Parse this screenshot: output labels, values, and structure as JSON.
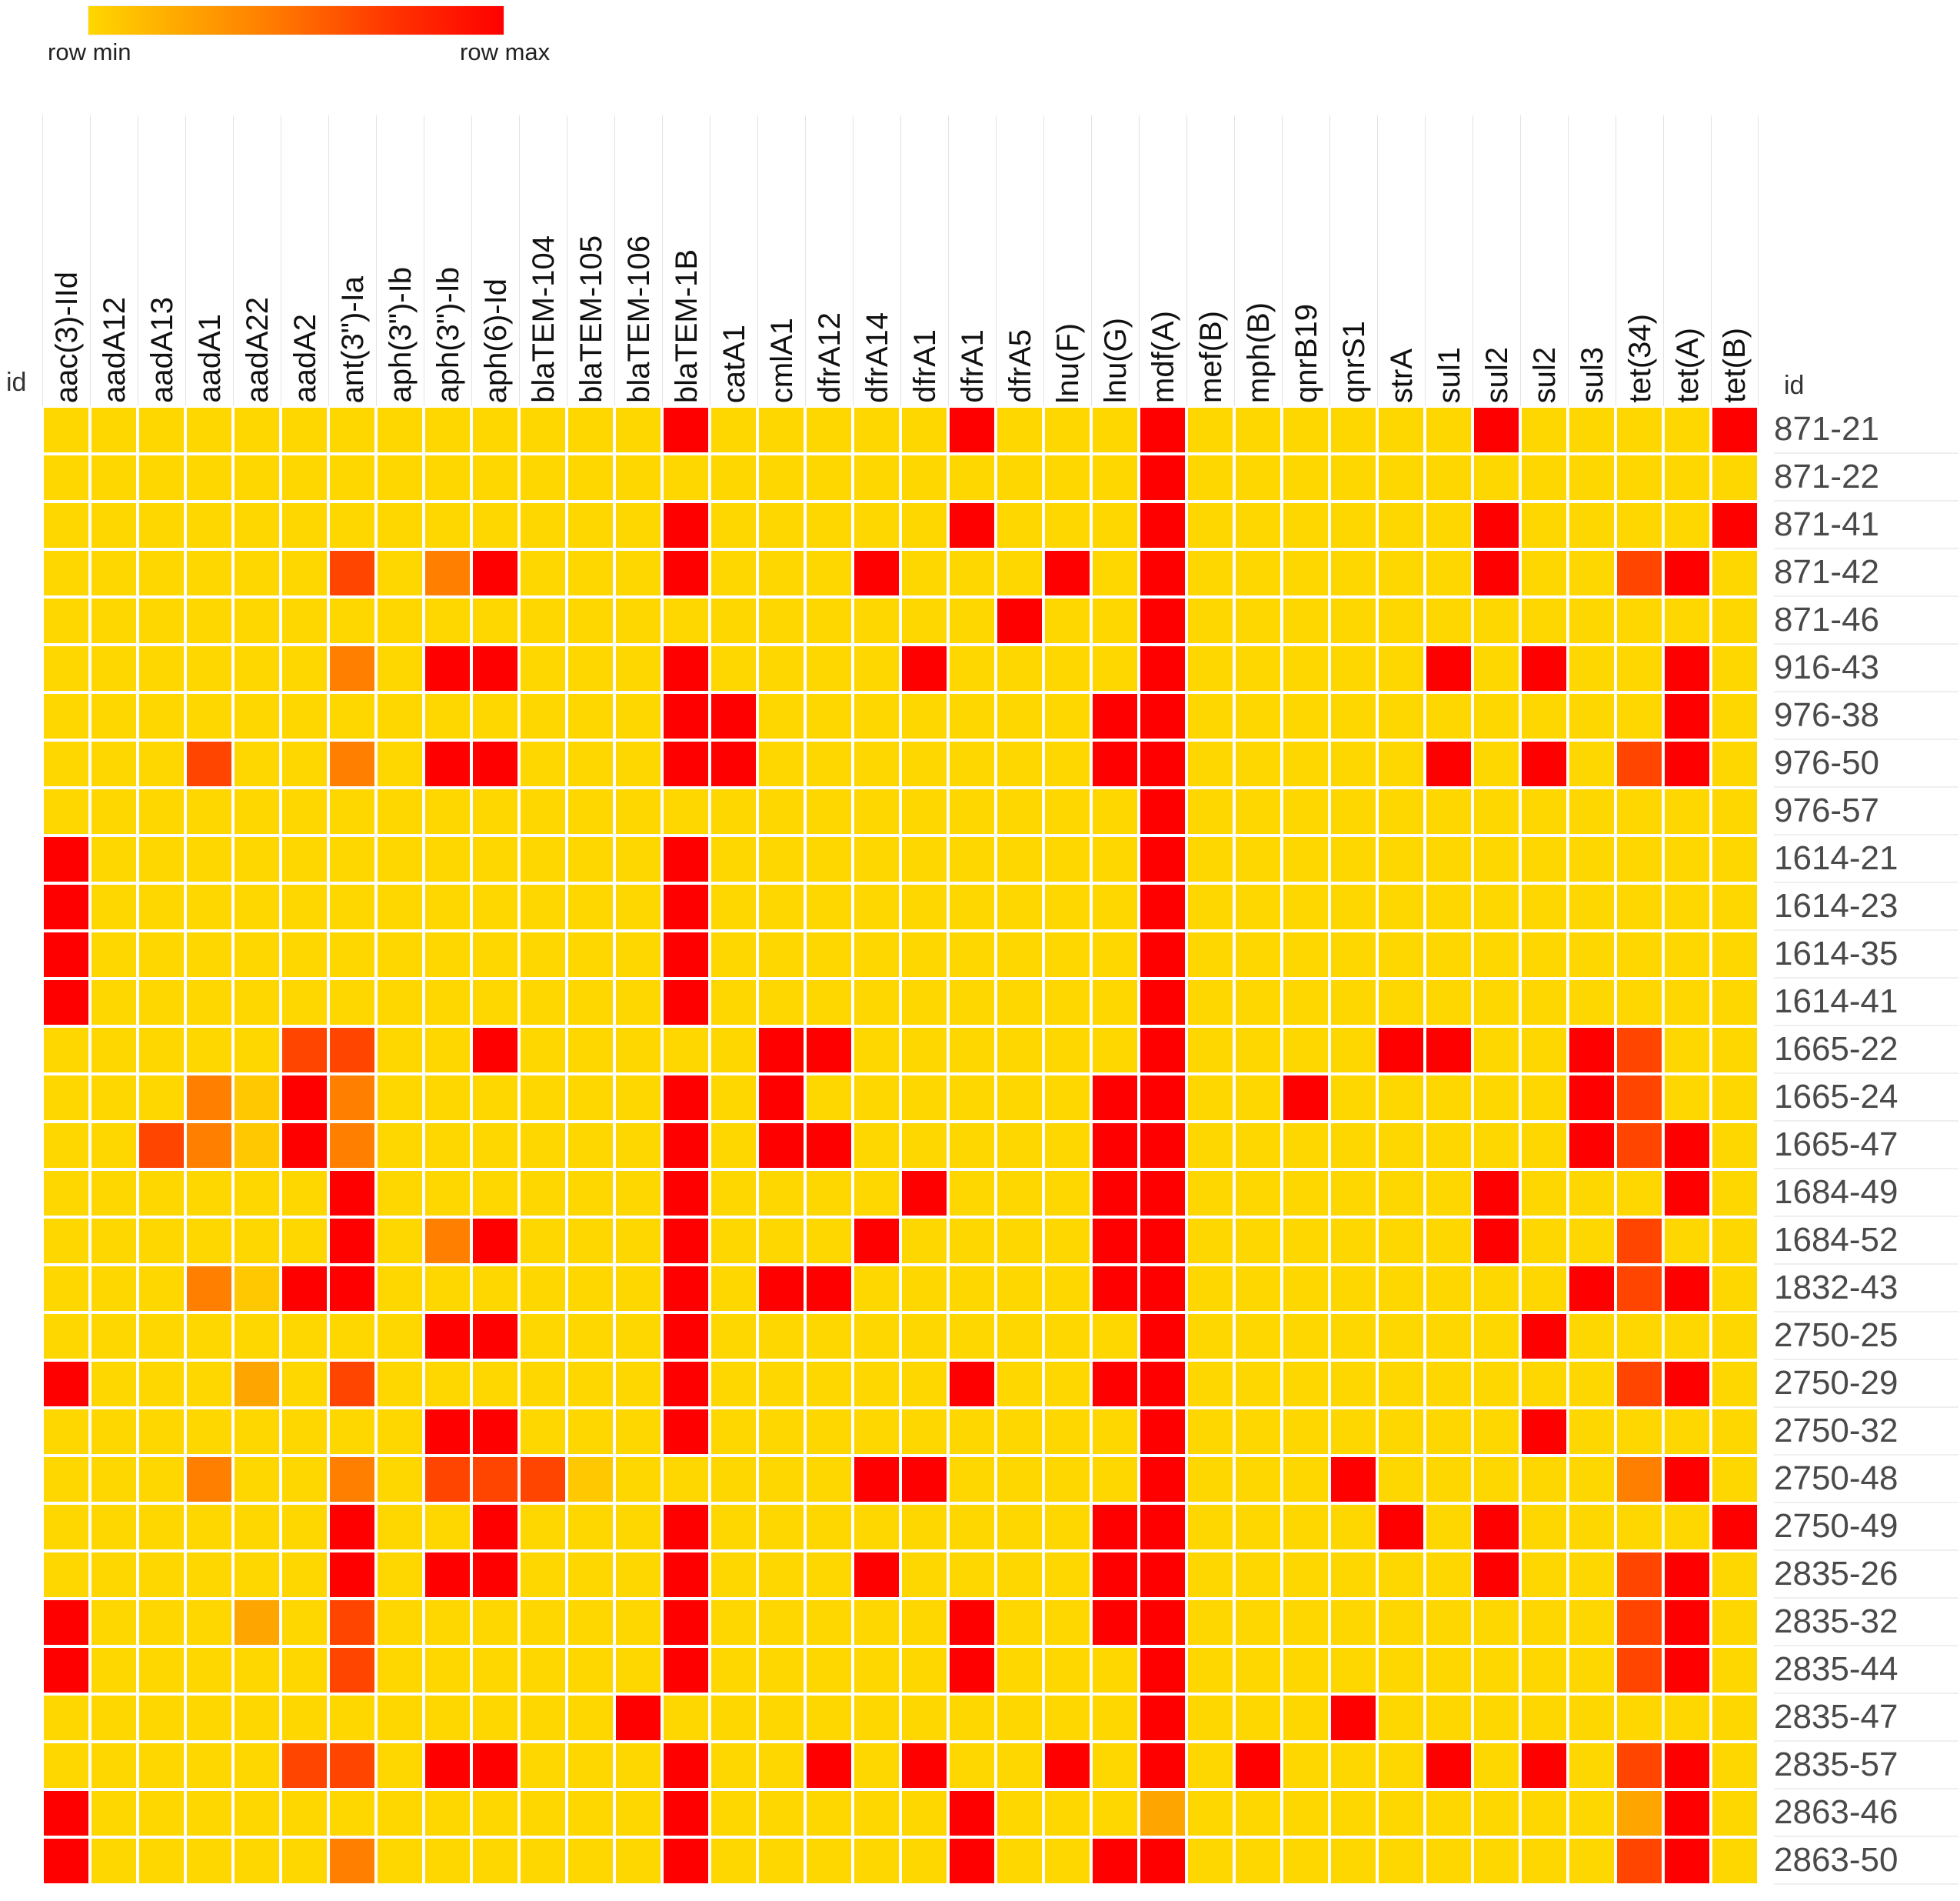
{
  "legend": {
    "min_label": "row min",
    "max_label": "row max"
  },
  "id_label_left": "id",
  "id_label_right": "id",
  "chart_data": {
    "type": "heatmap",
    "title": "",
    "legend_position": "top-left",
    "color_scale": {
      "min_color": "#FFD700",
      "max_color": "#FF0000",
      "min_label": "row min",
      "max_label": "row max"
    },
    "palette": {
      ".": "#FFD700",
      "R": "#FF0000",
      "O": "#FF4500",
      "o": "#FF8000",
      "a": "#FFA500",
      "y": "#FFC800"
    },
    "columns": [
      "aac(3)-IId",
      "aadA12",
      "aadA13",
      "aadA1",
      "aadA22",
      "aadA2",
      "ant(3\")-Ia",
      "aph(3\")-Ib",
      "aph(3\")-Ib",
      "aph(6)-Id",
      "blaTEM-104",
      "blaTEM-105",
      "blaTEM-106",
      "blaTEM-1B",
      "catA1",
      "cmlA1",
      "dfrA12",
      "dfrA14",
      "dfrA1",
      "dfrA1",
      "dfrA5",
      "lnu(F)",
      "lnu(G)",
      "mdf(A)",
      "mef(B)",
      "mph(B)",
      "qnrB19",
      "qnrS1",
      "strA",
      "sul1",
      "sul2",
      "sul2",
      "sul3",
      "tet(34)",
      "tet(A)",
      "tet(B)"
    ],
    "rows": [
      "871-21",
      "871-22",
      "871-41",
      "871-42",
      "871-46",
      "916-43",
      "976-38",
      "976-50",
      "976-57",
      "1614-21",
      "1614-23",
      "1614-35",
      "1614-41",
      "1665-22",
      "1665-24",
      "1665-47",
      "1684-49",
      "1684-52",
      "1832-43",
      "2750-25",
      "2750-29",
      "2750-32",
      "2750-48",
      "2750-49",
      "2835-26",
      "2835-32",
      "2835-44",
      "2835-47",
      "2835-57",
      "2863-46",
      "2863-50"
    ],
    "cells": [
      ".............R.....R...R......R....R",
      ".......................R............",
      ".............R.....R...R......R....R",
      "......O.oR...R...R...R.R......R..OR.",
      "....................R..R............",
      "......o.RR...R....R....R.....R.R..R.",
      ".............RR.......RR..........R.",
      "...O..o.RR...RR.......RR.....R.R.OR.",
      ".......................R............",
      "R............R.........R............",
      "R............R.........R............",
      "R............R.........R............",
      "R............R.........R............",
      ".....OO..R.....RR......R....RR..RO..",
      "...oyRo......R.R......RR..R.....RO..",
      "..OoyRo......R.RR.....RR........ROR.",
      "......R......R....R...RR......R...R.",
      "......R.oR...R...R....RR......R..O..",
      "...oyRR......R.RR.....RR........ROR.",
      "........RR...R.........R.......R....",
      "R...a.O......R.....R..RR.........OR.",
      "........RR...R.........R.......R....",
      "...o..o.OOOy.....RR....R...R.....oR.",
      "......R..R...R........RR....R.R....R",
      "......R.RR...R...R....RR......R..OR.",
      "R...a.O......R.....R..RR.........OR.",
      "R.....O......R.....R...R.........OR.",
      "............R..........R...R........",
      ".....OO.RR...R..R.R..R.R.R...R.R.OR.",
      "R............R.....R...a.........aR.",
      "R.....o......R.....R..RR.........OR."
    ]
  }
}
